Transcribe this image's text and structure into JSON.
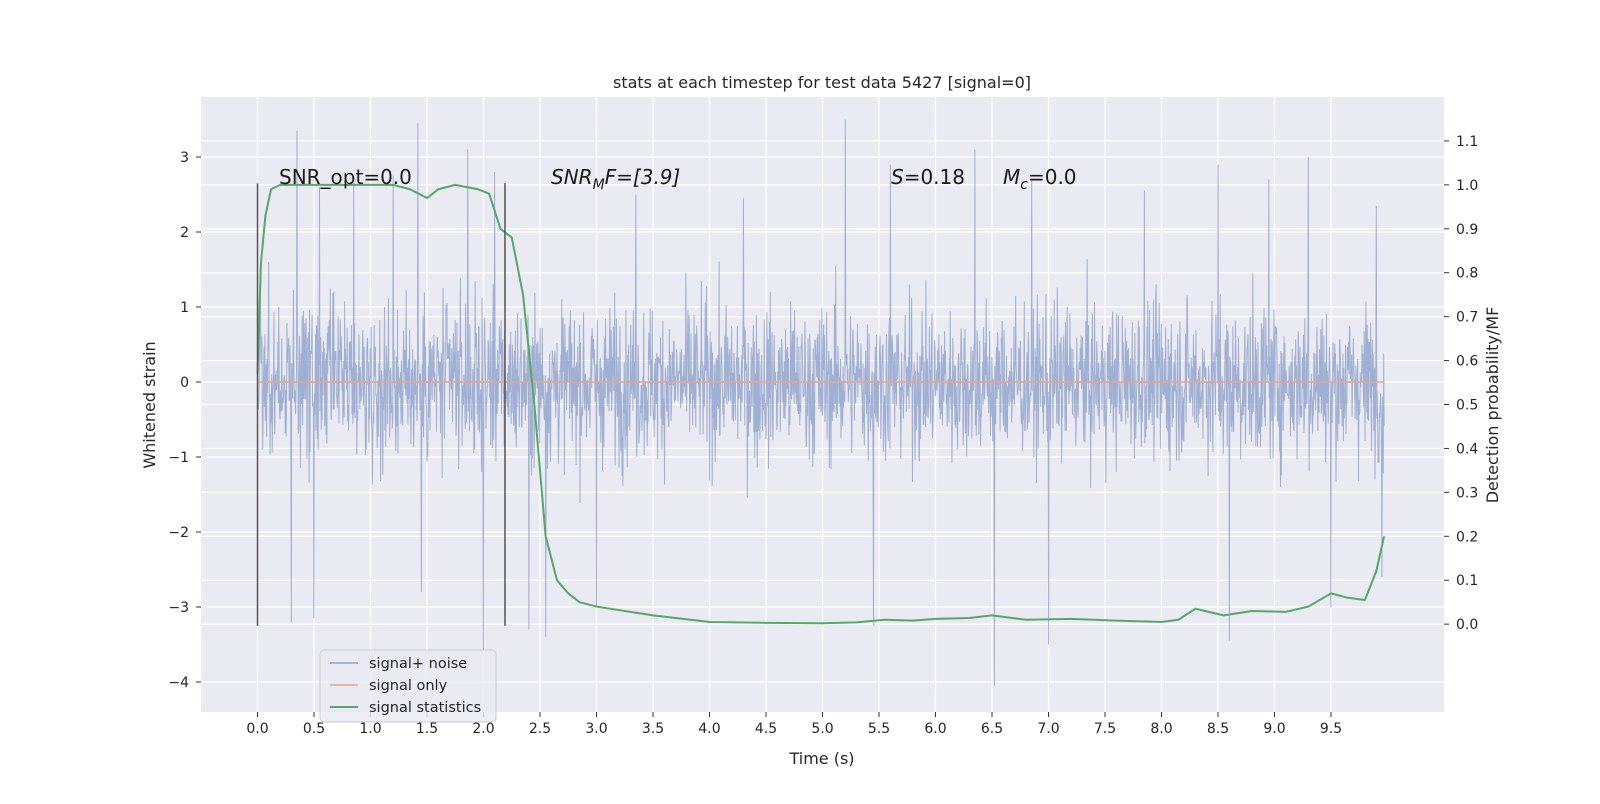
{
  "chart_data": {
    "type": "line",
    "title": "stats at each timestep for test data 5427 [signal=0]",
    "xlabel": "Time (s)",
    "ylabel_left": "Whitened strain",
    "ylabel_right": "Detection probability/MF",
    "xlim": [
      -0.5,
      10.5
    ],
    "ylim_left": [
      -4.4,
      3.8
    ],
    "ylim_right": [
      -0.2,
      1.2
    ],
    "x_ticks": [
      0.0,
      0.5,
      1.0,
      1.5,
      2.0,
      2.5,
      3.0,
      3.5,
      4.0,
      4.5,
      5.0,
      5.5,
      6.0,
      6.5,
      7.0,
      7.5,
      8.0,
      8.5,
      9.0,
      9.5
    ],
    "x_tick_labels": [
      "0.0",
      "0.5",
      "1.0",
      "1.5",
      "2.0",
      "2.5",
      "3.0",
      "3.5",
      "4.0",
      "4.5",
      "5.0",
      "5.5",
      "6.0",
      "6.5",
      "7.0",
      "7.5",
      "8.0",
      "8.5",
      "9.0",
      "9.5"
    ],
    "y_left_ticks": [
      -4,
      -3,
      -2,
      -1,
      0,
      1,
      2,
      3
    ],
    "y_left_tick_labels": [
      "−4",
      "−3",
      "−2",
      "−1",
      "0",
      "1",
      "2",
      "3"
    ],
    "y_right_ticks": [
      0.0,
      0.1,
      0.2,
      0.3,
      0.4,
      0.5,
      0.6,
      0.7,
      0.8,
      0.9,
      1.0,
      1.1
    ],
    "y_right_tick_labels": [
      "0.0",
      "0.1",
      "0.2",
      "0.3",
      "0.4",
      "0.5",
      "0.6",
      "0.7",
      "0.8",
      "0.9",
      "1.0",
      "1.1"
    ],
    "grid": true,
    "legend_position": "lower-left",
    "legend": [
      {
        "label": "signal+ noise",
        "color": "#8da0cb"
      },
      {
        "label": "signal only",
        "color": "#e5a58a"
      },
      {
        "label": "signal statistics",
        "color": "#55a868"
      }
    ],
    "annotations": {
      "snr_opt": "SNR_opt=0.0",
      "snr_mf_main": "SNR",
      "snr_mf_sub": "M",
      "snr_mf_rest": "F=[3.9]",
      "s_main": "S",
      "s_rest": "=0.18",
      "mc_main": "M",
      "mc_sub": "c",
      "mc_rest": "=0.0"
    },
    "vertical_markers_x": [
      0.0,
      2.19
    ],
    "vertical_markers_ylim": [
      -3.25,
      2.65
    ],
    "series": [
      {
        "name": "signal+ noise",
        "axis": "left",
        "color": "#8da0cb",
        "x_range": [
          0.0,
          9.97
        ],
        "band_typical": [
          -1.5,
          1.5
        ],
        "peaks": [
          [
            0.1,
            1.6
          ],
          [
            0.35,
            3.35
          ],
          [
            0.55,
            2.6
          ],
          [
            0.85,
            2.7
          ],
          [
            1.2,
            2.75
          ],
          [
            1.42,
            3.45
          ],
          [
            1.86,
            3.1
          ],
          [
            2.1,
            2.8
          ],
          [
            3.35,
            2.5
          ],
          [
            4.3,
            2.45
          ],
          [
            5.2,
            3.5
          ],
          [
            5.6,
            2.9
          ],
          [
            6.35,
            3.1
          ],
          [
            6.85,
            2.7
          ],
          [
            7.85,
            2.55
          ],
          [
            8.5,
            2.9
          ],
          [
            8.95,
            2.7
          ],
          [
            9.3,
            3.0
          ],
          [
            9.5,
            2.8
          ],
          [
            9.9,
            2.35
          ]
        ],
        "troughs": [
          [
            0.3,
            -3.2
          ],
          [
            0.5,
            -3.15
          ],
          [
            1.45,
            -2.8
          ],
          [
            2.0,
            -3.6
          ],
          [
            2.4,
            -3.3
          ],
          [
            2.55,
            -3.4
          ],
          [
            3.0,
            -3.0
          ],
          [
            5.45,
            -3.25
          ],
          [
            6.52,
            -4.05
          ],
          [
            7.0,
            -3.5
          ],
          [
            8.6,
            -3.45
          ],
          [
            9.5,
            -3.0
          ],
          [
            9.95,
            -2.6
          ]
        ]
      },
      {
        "name": "signal only",
        "axis": "left",
        "color": "#e5a58a",
        "x": [
          0.0,
          9.97
        ],
        "y": [
          0.0,
          0.0
        ]
      },
      {
        "name": "signal statistics",
        "axis": "right",
        "color": "#55a868",
        "x": [
          0.0,
          0.03,
          0.07,
          0.12,
          0.2,
          0.35,
          0.6,
          0.9,
          1.2,
          1.35,
          1.5,
          1.6,
          1.75,
          1.95,
          2.05,
          2.15,
          2.25,
          2.35,
          2.45,
          2.55,
          2.65,
          2.75,
          2.85,
          3.0,
          3.5,
          4.0,
          4.5,
          5.0,
          5.3,
          5.55,
          5.8,
          6.0,
          6.3,
          6.5,
          6.8,
          7.2,
          7.6,
          8.0,
          8.15,
          8.3,
          8.55,
          8.8,
          9.1,
          9.3,
          9.5,
          9.65,
          9.8,
          9.9,
          9.97
        ],
        "y": [
          0.57,
          0.82,
          0.93,
          0.99,
          1.0,
          1.0,
          1.0,
          1.0,
          1.0,
          0.99,
          0.97,
          0.99,
          1.0,
          0.99,
          0.98,
          0.9,
          0.88,
          0.75,
          0.5,
          0.2,
          0.1,
          0.07,
          0.05,
          0.04,
          0.02,
          0.005,
          0.003,
          0.002,
          0.004,
          0.01,
          0.008,
          0.012,
          0.014,
          0.02,
          0.01,
          0.012,
          0.008,
          0.005,
          0.01,
          0.035,
          0.02,
          0.03,
          0.028,
          0.04,
          0.07,
          0.06,
          0.055,
          0.12,
          0.2
        ]
      }
    ]
  }
}
